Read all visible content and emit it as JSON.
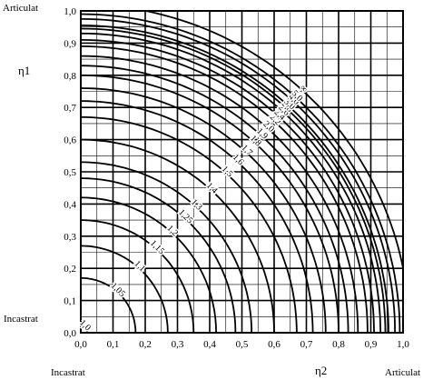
{
  "chart_data": {
    "type": "line",
    "title": "",
    "xlabel": "η2",
    "ylabel": "η1",
    "xlim": [
      0,
      1
    ],
    "ylim": [
      0,
      1
    ],
    "grid": true,
    "x_ticks": [
      "0,0",
      "0,1",
      "0,2",
      "0,3",
      "0,4",
      "0,5",
      "0,6",
      "0,7",
      "0,8",
      "0,9",
      "1,0"
    ],
    "y_ticks": [
      "0,0",
      "0,1",
      "0,2",
      "0,3",
      "0,4",
      "0,5",
      "0,6",
      "0,7",
      "0,8",
      "0,9",
      "1,0"
    ],
    "corner_labels": {
      "top_left": "Articulat",
      "left_bottom": "Incastrat",
      "bottom_left": "Incastrat",
      "bottom_right": "Articulat"
    },
    "curves": [
      {
        "label": "1,0",
        "radius": 0.02
      },
      {
        "label": "1,05",
        "radius": 0.17
      },
      {
        "label": "1,1",
        "radius": 0.27
      },
      {
        "label": "1,15",
        "radius": 0.35
      },
      {
        "label": "1,2",
        "radius": 0.42
      },
      {
        "label": "1,25",
        "radius": 0.48
      },
      {
        "label": "1,3",
        "radius": 0.53
      },
      {
        "label": "1,4",
        "radius": 0.6
      },
      {
        "label": "1,5",
        "radius": 0.67
      },
      {
        "label": "1,6",
        "radius": 0.72
      },
      {
        "label": "1,7",
        "radius": 0.76
      },
      {
        "label": "1,8",
        "radius": 0.8
      },
      {
        "label": "1,9",
        "radius": 0.83
      },
      {
        "label": "2,0",
        "radius": 0.86
      },
      {
        "label": "2,2",
        "radius": 0.89
      },
      {
        "label": "2,4",
        "radius": 0.91
      },
      {
        "label": "2,6",
        "radius": 0.93
      },
      {
        "label": "2,8",
        "radius": 0.945
      },
      {
        "label": "3,0",
        "radius": 0.955
      },
      {
        "label": "4,0",
        "radius": 0.975
      },
      {
        "label": "5,0",
        "radius": 0.99
      },
      {
        "label": "∞",
        "radius": 1.02
      }
    ]
  }
}
